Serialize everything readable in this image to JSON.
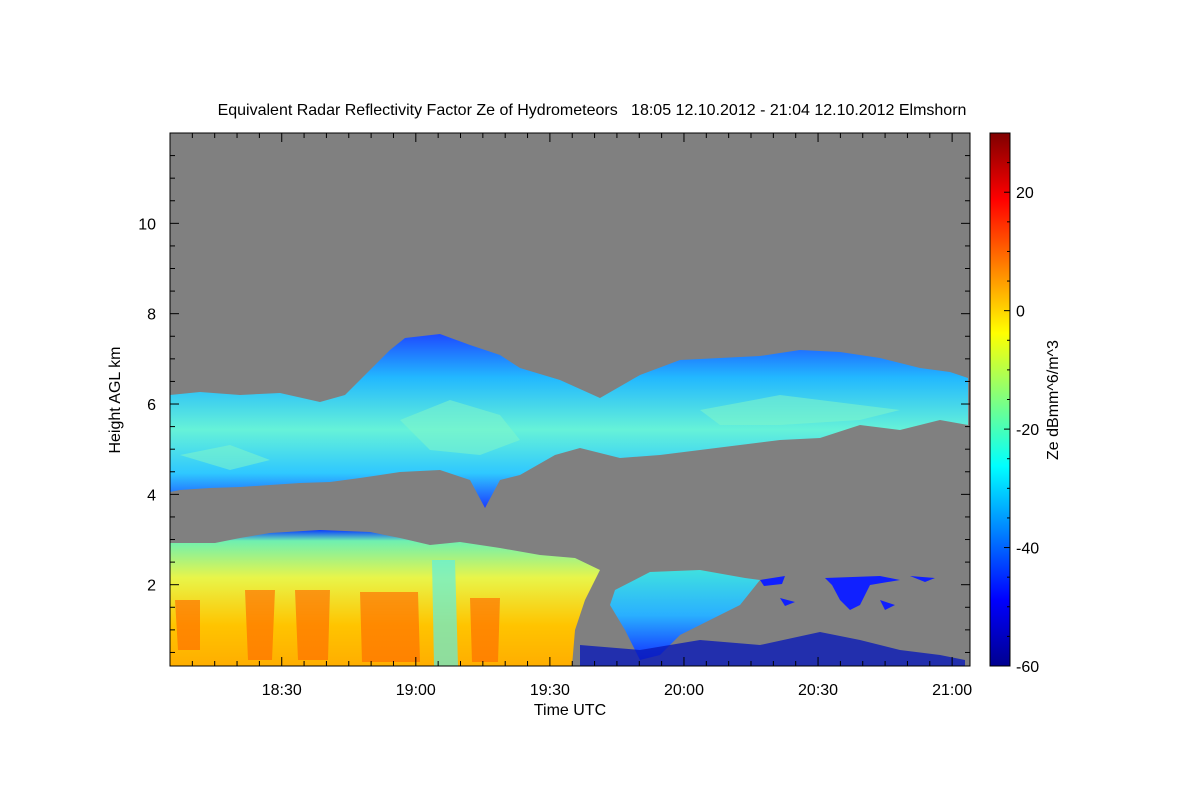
{
  "chart_data": {
    "type": "heatmap",
    "title": "Equivalent Radar Reflectivity Factor Ze of Hydrometeors   18:05 12.10.2012 - 21:04 12.10.2012 Elmshorn",
    "xlabel": "Time UTC",
    "ylabel": "Height AGL km",
    "colorbar_label": "Ze dBmm^6/m^3",
    "x_unit": "UTC time of day",
    "xlim": [
      "18:05",
      "21:04"
    ],
    "ylim": [
      0.2,
      12.0
    ],
    "x_ticks": [
      "18:30",
      "19:00",
      "19:30",
      "20:00",
      "20:30",
      "21:00"
    ],
    "y_ticks": [
      2,
      4,
      6,
      8,
      10
    ],
    "colorbar_range": [
      -60,
      30
    ],
    "colorbar_ticks": [
      20,
      0,
      -20,
      -40,
      -60
    ],
    "colormap": "jet",
    "background_color": "#808080",
    "regions": [
      {
        "name": "upper cloud layer",
        "x_range": [
          "18:05",
          "21:04"
        ],
        "height_km": [
          3.6,
          7.6
        ],
        "ze_dbz_range": [
          -50,
          -20
        ]
      },
      {
        "name": "precipitation",
        "x_range": [
          "18:05",
          "19:36"
        ],
        "height_km": [
          0.2,
          3.2
        ],
        "ze_dbz_range": [
          -20,
          10
        ]
      },
      {
        "name": "low cloud patch",
        "x_range": [
          "19:45",
          "20:15"
        ],
        "height_km": [
          0.2,
          2.3
        ],
        "ze_dbz_range": [
          -45,
          -20
        ]
      }
    ]
  }
}
